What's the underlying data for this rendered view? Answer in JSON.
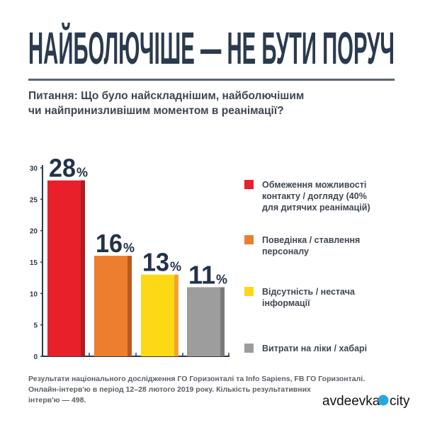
{
  "title": "НАЙБОЛЮЧІШЕ — НЕ БУТИ ПОРУЧ",
  "question": {
    "line1": "Питання: Що було найскладнішим, найболючішим",
    "line2": "чи найпринизливішим моментом в реанімації?"
  },
  "chart_data": {
    "type": "bar",
    "categories": [
      "Обмеження можливості контакту / догляду (40% для дитячих реанімацій)",
      "Поведінка / ставлення персоналу",
      "Відсутність / нестача інформації",
      "Витрати на ліки / хабарі"
    ],
    "values": [
      28,
      16,
      13,
      11
    ],
    "data_labels": [
      "28",
      "16",
      "13",
      "11"
    ],
    "label_suffix": "%",
    "ylim": [
      0,
      30
    ],
    "yticks": [
      "0",
      "5",
      "10",
      "15",
      "20",
      "25",
      "30"
    ],
    "colors": [
      "#e8202a",
      "#ec7e2d",
      "#fcd914",
      "#9d9d9d"
    ],
    "shade_colors": [
      "#b31b21",
      "#b85a1e",
      "#f0a534",
      "#7a7a7a"
    ],
    "legend_placement": "right",
    "grid": false
  },
  "legend": [
    {
      "lines": [
        "Обмеження можливості",
        "контакту / догляду (40%",
        "для дитячих реанімацій)"
      ]
    },
    {
      "lines": [
        "Поведінка / ставлення",
        "персоналу"
      ]
    },
    {
      "lines": [
        "Відсутність / нестача",
        "інформації"
      ]
    },
    {
      "lines": [
        "Витрати на ліки / хабарі"
      ]
    }
  ],
  "note": {
    "line1": "Результати національного дослідження ГО Горизонталі та Info Sapiens, FB ГО Горизонталі.",
    "line2": "Онлайн-інтерв'ю в період 12–28 лютого 2019 року. Кількість результативних",
    "line3": "інтерв'ю — 498."
  },
  "watermark": {
    "left": "avdeevka",
    "right": "city"
  },
  "colors": {
    "title": "#2b3a4e",
    "rule": "#5b6678",
    "watermark_dot": "#29a8e0"
  }
}
